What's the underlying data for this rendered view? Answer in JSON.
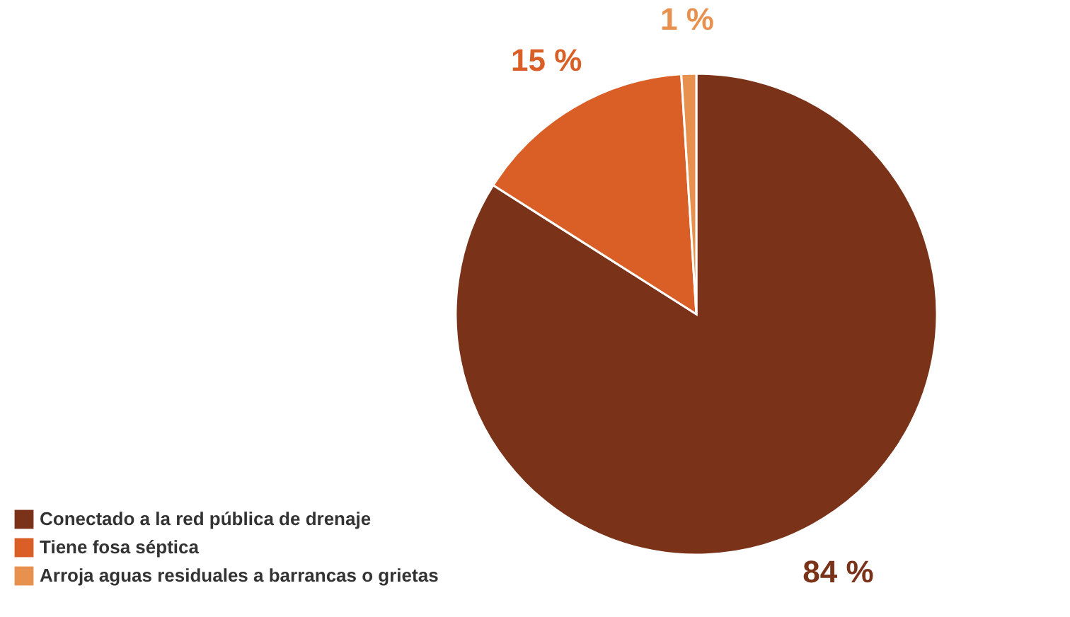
{
  "chart_data": {
    "type": "pie",
    "categories": [
      "Conectado a la red pública de drenaje",
      "Tiene fosa séptica",
      "Arroja aguas residuales a barrancas o grietas"
    ],
    "values": [
      84,
      15,
      1
    ],
    "colors": [
      "#7a3319",
      "#d95f26",
      "#e8914f"
    ],
    "value_labels": [
      "84 %",
      "15 %",
      "1 %"
    ],
    "legend": "bottom left"
  }
}
